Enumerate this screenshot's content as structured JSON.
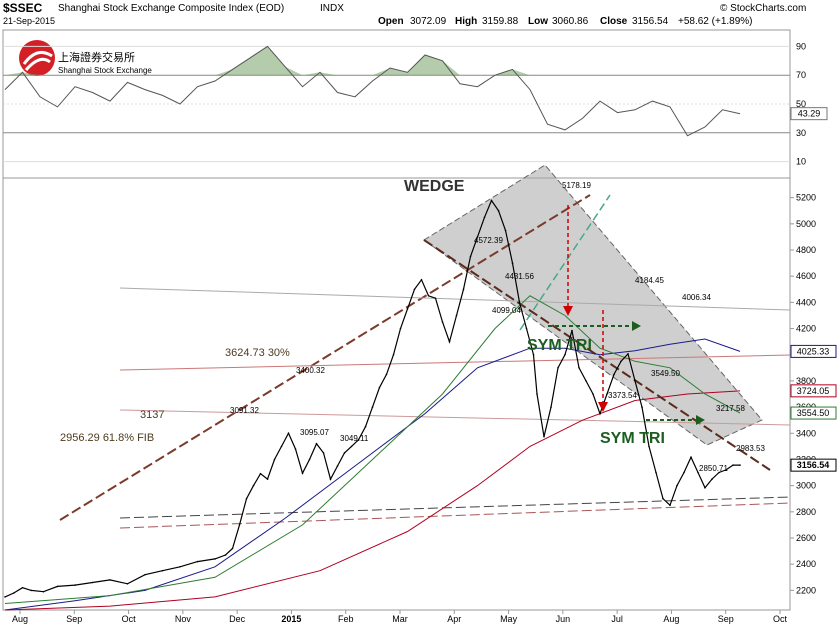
{
  "header": {
    "symbol": "$SSEC",
    "name": "Shanghai Stock Exchange Composite Index (EOD)",
    "exchange": "INDX",
    "date": "21-Sep-2015",
    "open_label": "Open",
    "open": "3072.09",
    "high_label": "High",
    "high": "3159.88",
    "low_label": "Low",
    "low": "3060.86",
    "close_label": "Close",
    "close": "3156.54",
    "change": "+58.62 (+1.89%)",
    "watermark": "© StockCharts.com"
  },
  "logo": {
    "cn": "上海證券交易所",
    "en": "Shanghai Stock Exchange"
  },
  "colors": {
    "price": "#000000",
    "ma_blue": "#1a1a8c",
    "ma_red": "#b00020",
    "ma_green": "#2e7d32",
    "wedge": "#b0b0b0",
    "trend": "#7b3b2b",
    "rsi": "#555555",
    "arrow": "#d00000",
    "sym": "#1b5e20"
  },
  "chart_data": [
    {
      "type": "line",
      "title": "Shanghai Stock Exchange Composite Index (EOD)",
      "x_labels": [
        "Aug",
        "Sep",
        "Oct",
        "Nov",
        "Dec",
        "2015",
        "Feb",
        "Mar",
        "Apr",
        "May",
        "Jun",
        "Jul",
        "Aug",
        "Sep",
        "Oct"
      ],
      "y_ticks": [
        2200,
        2400,
        2600,
        2800,
        3000,
        3200,
        3400,
        3600,
        3800,
        4000,
        4200,
        4400,
        4600,
        4800,
        5000,
        5200
      ],
      "ylim": [
        2050,
        5350
      ],
      "series": [
        {
          "name": "",
          "key": "price",
          "x": [
            0,
            5,
            10,
            15,
            22,
            30,
            40,
            50,
            60,
            70,
            80,
            90,
            100,
            110,
            120,
            126,
            130,
            134,
            138,
            142,
            146,
            150,
            154,
            158,
            162,
            166,
            170,
            174,
            178,
            182,
            186,
            190,
            194,
            198,
            202,
            206,
            210,
            214,
            218,
            222,
            226,
            230,
            234,
            238,
            242,
            246,
            250,
            254,
            258,
            262,
            266,
            270,
            274,
            278,
            282,
            286,
            290,
            294,
            298,
            302,
            304,
            308,
            312,
            316,
            320,
            324,
            328,
            332,
            336,
            340,
            344,
            348,
            352,
            356,
            360,
            364,
            368,
            372,
            376,
            380,
            384,
            388,
            392,
            396,
            400,
            404,
            408,
            412,
            416,
            420
          ],
          "values": [
            2150,
            2180,
            2220,
            2200,
            2190,
            2230,
            2240,
            2260,
            2280,
            2250,
            2320,
            2350,
            2380,
            2420,
            2440,
            2470,
            2520,
            2700,
            2900,
            3000,
            3091.32,
            3050,
            3200,
            3300,
            3400.32,
            3280,
            3095.07,
            3200,
            3320,
            3250,
            3049.11,
            3150,
            3250,
            3300,
            3350,
            3450,
            3600,
            3750,
            3850,
            4000,
            4200,
            4350,
            4500,
            4572.39,
            4450,
            4431.56,
            4250,
            4099.04,
            4300,
            4500,
            4750,
            4900,
            5050,
            5178.19,
            5100,
            4950,
            4700,
            4400,
            4200,
            4000,
            3700,
            3373.54,
            3600,
            3900,
            4000,
            4184.45,
            3900,
            3800,
            3700,
            3549.5,
            3700,
            3850,
            3950,
            4006.34,
            3800,
            3600,
            3300,
            3100,
            2900,
            2850.71,
            3000,
            3100,
            3217.58,
            3100,
            2983.53,
            3050,
            3100,
            3120,
            3156.54,
            3156.54
          ]
        },
        {
          "name": "",
          "key": "ma_blue",
          "x": [
            0,
            40,
            80,
            120,
            160,
            200,
            240,
            270,
            300,
            320,
            340,
            360,
            380,
            400,
            420
          ],
          "values": [
            2050,
            2120,
            2200,
            2380,
            2750,
            3150,
            3550,
            3900,
            4050,
            4050,
            4000,
            4030,
            4080,
            4120,
            4025.33
          ]
        },
        {
          "name": "",
          "key": "ma_red",
          "x": [
            0,
            60,
            120,
            180,
            230,
            270,
            300,
            330,
            360,
            390,
            420
          ],
          "values": [
            2050,
            2080,
            2150,
            2350,
            2650,
            3000,
            3300,
            3500,
            3650,
            3700,
            3724.05
          ]
        },
        {
          "name": "",
          "key": "ma_green",
          "x": [
            0,
            60,
            120,
            170,
            210,
            250,
            280,
            300,
            320,
            340,
            360,
            380,
            400,
            420
          ],
          "values": [
            2100,
            2160,
            2300,
            2700,
            3200,
            3700,
            4200,
            4450,
            4300,
            4050,
            3950,
            3900,
            3700,
            3554.5
          ]
        }
      ],
      "annotations": [
        {
          "text": "WEDGE"
        },
        {
          "text": "SYM TRI"
        },
        {
          "text": "SYM TRI"
        },
        {
          "text": "3624.73  30%"
        },
        {
          "text": "3137"
        },
        {
          "text": "2956.29  61.8% FIB"
        },
        {
          "text": "5178.19"
        },
        {
          "text": "4572.39"
        },
        {
          "text": "4431.56"
        },
        {
          "text": "4099.04"
        },
        {
          "text": "4184.45"
        },
        {
          "text": "4006.34"
        },
        {
          "text": "3549.50"
        },
        {
          "text": "3373.54"
        },
        {
          "text": "3400.32"
        },
        {
          "text": "3091.32"
        },
        {
          "text": "3095.07"
        },
        {
          "text": "3049.11"
        },
        {
          "text": "3217.58"
        },
        {
          "text": "2983.53"
        },
        {
          "text": "2850.71"
        }
      ],
      "last_values": [
        {
          "text": "4025.33",
          "key": "ma_blue"
        },
        {
          "text": "3724.05",
          "key": "ma_red"
        },
        {
          "text": "3554.50",
          "key": "ma_green"
        },
        {
          "text": "3156.54",
          "key": "price"
        }
      ]
    },
    {
      "type": "line",
      "title": "",
      "y_ticks": [
        10,
        30,
        50,
        70,
        90
      ],
      "ylim": [
        0,
        100
      ],
      "series": [
        {
          "name": "",
          "key": "rsi",
          "x": [
            0,
            10,
            20,
            30,
            40,
            50,
            60,
            70,
            80,
            90,
            100,
            110,
            120,
            130,
            140,
            150,
            160,
            170,
            180,
            190,
            200,
            210,
            220,
            230,
            240,
            250,
            260,
            270,
            280,
            290,
            300,
            310,
            320,
            330,
            340,
            350,
            360,
            370,
            380,
            390,
            400,
            410,
            420
          ],
          "values": [
            60,
            72,
            55,
            48,
            62,
            58,
            52,
            65,
            60,
            56,
            50,
            62,
            66,
            74,
            82,
            90,
            76,
            62,
            72,
            58,
            55,
            66,
            75,
            72,
            84,
            80,
            64,
            62,
            70,
            74,
            60,
            36,
            32,
            40,
            52,
            44,
            46,
            52,
            48,
            28,
            34,
            46,
            43.29
          ]
        }
      ],
      "last_value": "43.29"
    }
  ]
}
